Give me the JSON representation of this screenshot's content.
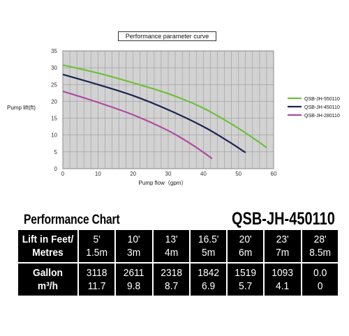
{
  "chart_data": {
    "type": "line",
    "title": "Performance parameter curve",
    "xlabel": "Pump flow（gpm）",
    "ylabel": "Pump lift(ft)",
    "xlim": [
      0,
      60
    ],
    "ylim": [
      0,
      35
    ],
    "x_ticks": [
      "0",
      "10",
      "20",
      "30",
      "40",
      "50",
      "60"
    ],
    "y_ticks": [
      "0",
      "5",
      "10",
      "15",
      "20",
      "25",
      "30",
      "35"
    ],
    "grid": true,
    "legend_position": "right",
    "series": [
      {
        "name": "QSB-JH-550110",
        "color": "#6fbf3a",
        "x": [
          0,
          10,
          20,
          30,
          40,
          50,
          58
        ],
        "y": [
          30.8,
          28.4,
          25.5,
          22.3,
          18.0,
          12.0,
          6.3
        ]
      },
      {
        "name": "QSB-JH-450110",
        "color": "#1c2350",
        "x": [
          0,
          10,
          20,
          30,
          40,
          47,
          52
        ],
        "y": [
          28.0,
          25.0,
          21.7,
          17.5,
          12.5,
          8.2,
          4.8
        ]
      },
      {
        "name": "QSB-JH-280110",
        "color": "#b04aa0",
        "x": [
          0,
          10,
          20,
          30,
          37,
          42.5
        ],
        "y": [
          23.0,
          19.7,
          16.0,
          11.3,
          7.0,
          3.0
        ]
      }
    ]
  },
  "table": {
    "title": "Performance Chart",
    "model": "QSB-JH-450110",
    "row1_label": [
      "Lift in Feet/",
      "Metres"
    ],
    "row1_cells": [
      [
        "5'",
        "1.5m"
      ],
      [
        "10'",
        "3m"
      ],
      [
        "13'",
        "4m"
      ],
      [
        "16.5'",
        "5m"
      ],
      [
        "20'",
        "6m"
      ],
      [
        "23'",
        "7m"
      ],
      [
        "28'",
        "8.5m"
      ]
    ],
    "row2_label": [
      "Gallon",
      "m³/h"
    ],
    "row2_cells": [
      [
        "3118",
        "11.7"
      ],
      [
        "2611",
        "9.8"
      ],
      [
        "2318",
        "8.7"
      ],
      [
        "1842",
        "6.9"
      ],
      [
        "1519",
        "5.7"
      ],
      [
        "1093",
        "4.1"
      ],
      [
        "0.0",
        "0"
      ]
    ]
  }
}
